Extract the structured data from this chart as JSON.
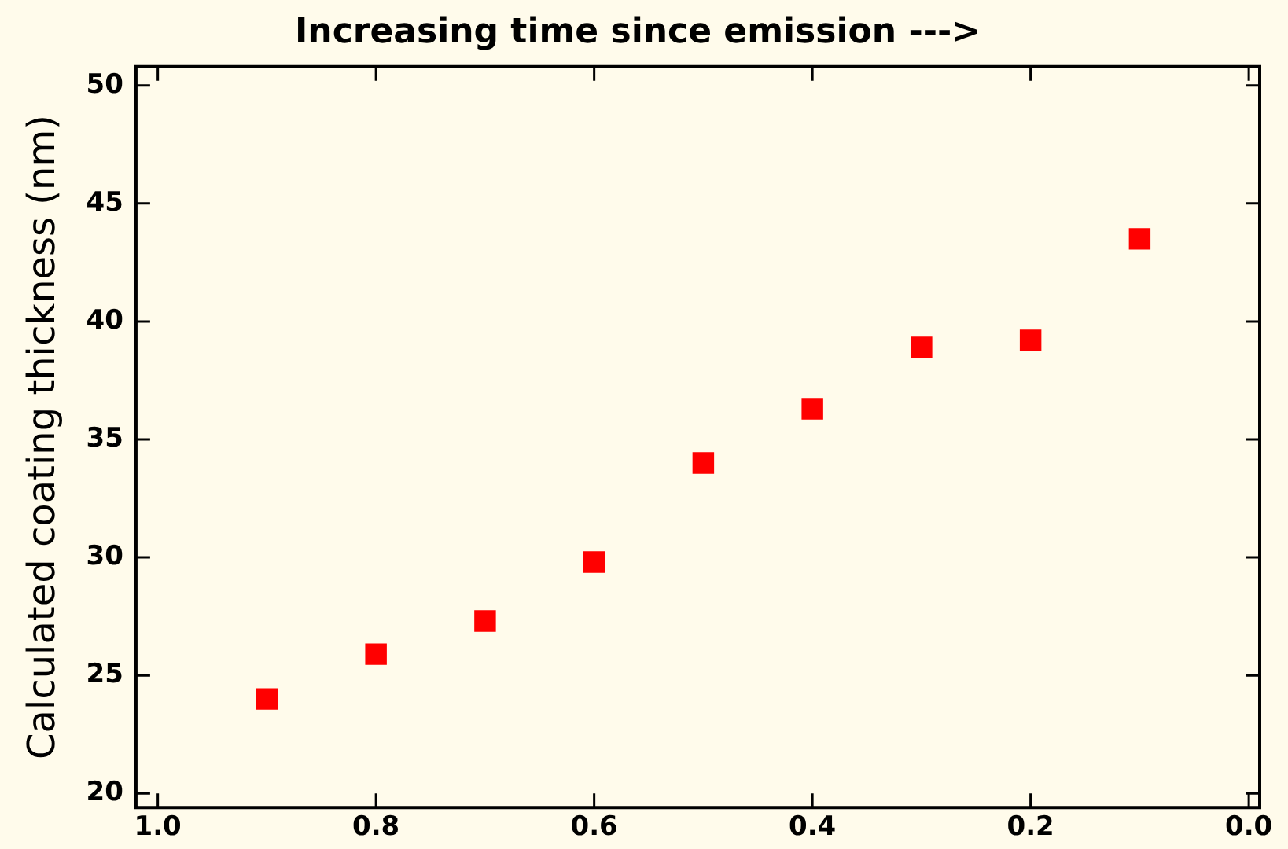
{
  "chart_data": {
    "type": "scatter",
    "title": "Increasing time since emission --->",
    "ylabel": "Calculated coating thickness (nm)",
    "x": [
      0.9,
      0.8,
      0.7,
      0.6,
      0.5,
      0.4,
      0.3,
      0.2,
      0.1
    ],
    "series": [
      {
        "color": "#ff0000",
        "values": [
          24.0,
          25.9,
          27.3,
          29.8,
          34.0,
          36.3,
          38.9,
          39.2,
          43.5
        ]
      }
    ],
    "xlim": [
      1.02,
      -0.01
    ],
    "xticks": [
      {
        "value": 1,
        "label": "1.0"
      },
      0.8,
      0.6,
      0.4,
      0.2,
      {
        "value": 0,
        "label": "0.0"
      }
    ],
    "ylim": [
      19.4,
      50.8
    ],
    "yticks": [
      20,
      25,
      30,
      35,
      40,
      45,
      50
    ],
    "grid": false,
    "legend": false,
    "marker": "square"
  }
}
